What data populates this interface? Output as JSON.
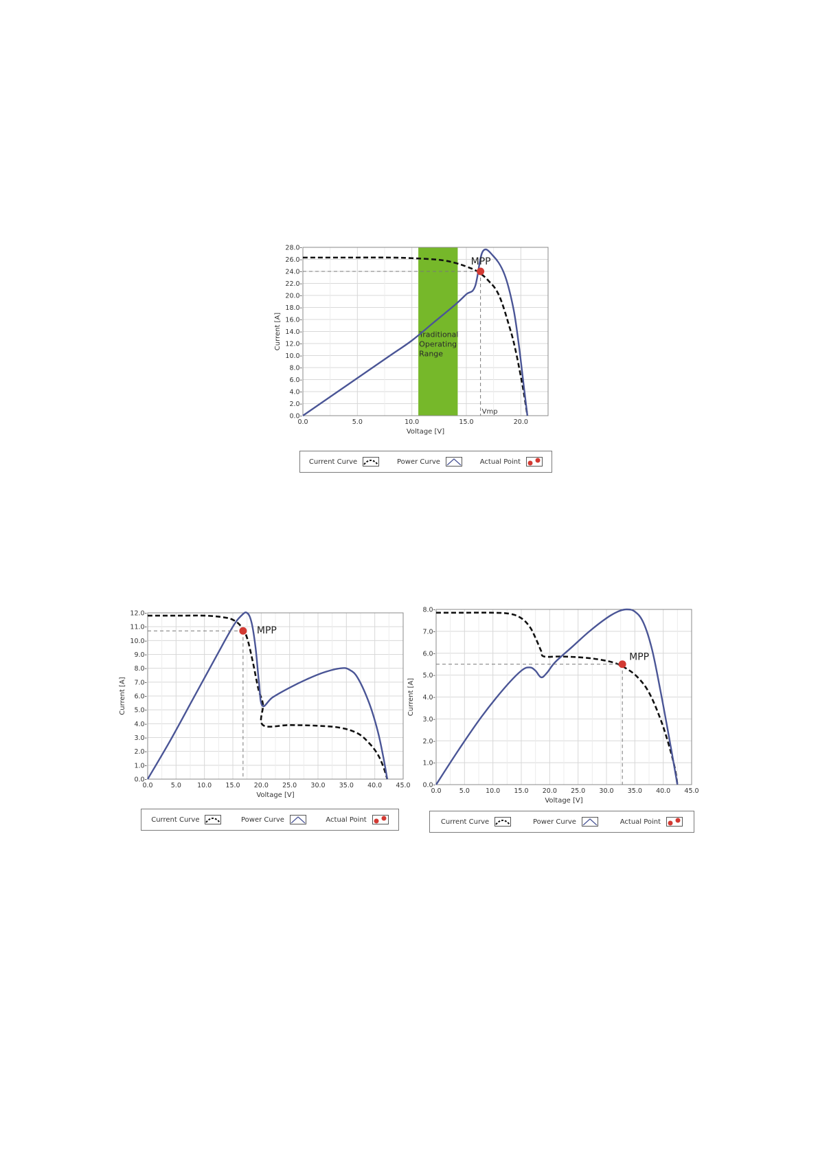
{
  "legend": {
    "current_curve": "Current Curve",
    "power_curve": "Power Curve",
    "actual_point": "Actual Point"
  },
  "colors": {
    "power_curve": "#4a5596",
    "current_curve": "#111111",
    "actual_point": "#d23a33",
    "operating_range": "#76b82a",
    "grid": "#d8d8d8"
  },
  "chart_data": [
    {
      "type": "line",
      "id": "top",
      "xlabel": "Voltage [V]",
      "ylabel": "Current [A]",
      "xlim": [
        0,
        22.5
      ],
      "ylim": [
        0,
        28
      ],
      "xticks": [
        0,
        5,
        10,
        15,
        20
      ],
      "xtick_labels": [
        "0.0",
        "5.0",
        "10.0",
        "15.0",
        "20.0"
      ],
      "yticks": [
        0,
        2,
        4,
        6,
        8,
        10,
        12,
        14,
        16,
        18,
        20,
        22,
        24,
        26,
        28
      ],
      "ytick_labels": [
        "0.0-",
        "2.0-",
        "4.0-",
        "6.0-",
        "8.0-",
        "10.0-",
        "12.0-",
        "14.0-",
        "16.0-",
        "18.0-",
        "20.0-",
        "22.0-",
        "24.0-",
        "26.0-",
        "28.0-"
      ],
      "grid": true,
      "series": [
        {
          "name": "Current Curve",
          "style": "dashed",
          "x": [
            0,
            4,
            8,
            10,
            12,
            13,
            14,
            15,
            16,
            17,
            18,
            19,
            19.5,
            20,
            20.3,
            20.6
          ],
          "y": [
            26.3,
            26.3,
            26.3,
            26.2,
            26.0,
            25.8,
            25.4,
            24.8,
            24.0,
            22.5,
            20.0,
            14.5,
            11.0,
            6.5,
            3.5,
            0.0
          ]
        },
        {
          "name": "Power Curve",
          "style": "solid",
          "x": [
            0,
            4,
            8,
            10,
            12,
            14,
            15,
            15.8,
            16.5,
            17.5,
            18.5,
            19.3,
            19.8,
            20.2,
            20.6
          ],
          "y": [
            0,
            5.0,
            10.0,
            12.5,
            15.5,
            18.5,
            20.2,
            21.5,
            27.3,
            26.5,
            23.5,
            18.0,
            12.0,
            6.0,
            0.0
          ]
        }
      ],
      "actual_point": {
        "x": 16.3,
        "y": 24.0
      },
      "mpp_label": "MPP",
      "vmp_label": "Vmp",
      "range_band": {
        "x0": 10.6,
        "x1": 14.2,
        "label_lines": [
          "Traditional",
          "Operating",
          "Range"
        ]
      }
    },
    {
      "type": "line",
      "id": "bottom-left",
      "xlabel": "Voltage [V]",
      "ylabel": "Current [A]",
      "xlim": [
        0,
        45
      ],
      "ylim": [
        0,
        12
      ],
      "xticks": [
        0,
        5,
        10,
        15,
        20,
        25,
        30,
        35,
        40,
        45
      ],
      "xtick_labels": [
        "0.0",
        "5.0",
        "10.0",
        "15.0",
        "20.0",
        "25.0",
        "30.0",
        "35.0",
        "40.0",
        "45.0"
      ],
      "yticks": [
        0,
        1,
        2,
        3,
        4,
        5,
        6,
        7,
        8,
        9,
        10,
        11,
        12
      ],
      "ytick_labels": [
        "0.0-",
        "1.0-",
        "2.0-",
        "3.0-",
        "4.0-",
        "5.0-",
        "6.0-",
        "7.0-",
        "8.0-",
        "9.0-",
        "10.0-",
        "11.0-",
        "12.0-"
      ],
      "grid": true,
      "series": [
        {
          "name": "Current Curve",
          "style": "dashed",
          "x": [
            0,
            6,
            10,
            13,
            15,
            16.5,
            17.5,
            18.5,
            19.5,
            20.3,
            20.3,
            25,
            30,
            34,
            37,
            39,
            40.5,
            41.5,
            42.2
          ],
          "y": [
            11.8,
            11.8,
            11.8,
            11.7,
            11.5,
            11.0,
            10.2,
            8.5,
            6.5,
            5.4,
            3.9,
            3.9,
            3.85,
            3.7,
            3.3,
            2.6,
            1.8,
            0.9,
            0.0
          ]
        },
        {
          "name": "Power Curve",
          "style": "solid",
          "x": [
            0,
            4,
            8,
            12,
            15,
            16.5,
            17.5,
            18.3,
            19.0,
            19.6,
            20.2,
            22,
            25,
            28,
            31,
            34,
            35.5,
            37,
            39,
            40.5,
            41.5,
            42.2
          ],
          "y": [
            0,
            2.8,
            5.8,
            8.8,
            11.0,
            11.8,
            12.0,
            11.3,
            9.5,
            7.0,
            5.3,
            5.9,
            6.6,
            7.2,
            7.7,
            8.0,
            7.9,
            7.3,
            5.5,
            3.5,
            1.6,
            0.0
          ]
        }
      ],
      "actual_point": {
        "x": 16.8,
        "y": 10.7
      },
      "mpp_label": "MPP"
    },
    {
      "type": "line",
      "id": "bottom-right",
      "xlabel": "Voltage [V]",
      "ylabel": "Current [A]",
      "xlim": [
        0,
        45
      ],
      "ylim": [
        0,
        8
      ],
      "xticks": [
        0,
        5,
        10,
        15,
        20,
        25,
        30,
        35,
        40,
        45
      ],
      "xtick_labels": [
        "0.0",
        "5.0",
        "10.0",
        "15.0",
        "20.0",
        "25.0",
        "30.0",
        "35.0",
        "40.0",
        "45.0"
      ],
      "yticks": [
        0,
        1,
        2,
        3,
        4,
        5,
        6,
        7,
        8
      ],
      "ytick_labels": [
        "0.0-",
        "1.0-",
        "2.0-",
        "3.0-",
        "4.0-",
        "5.0-",
        "6.0-",
        "7.0-",
        "8.0-"
      ],
      "grid": true,
      "series": [
        {
          "name": "Current Curve",
          "style": "dashed",
          "x": [
            0,
            5,
            10,
            13,
            15,
            16.5,
            17.5,
            18.5,
            19.0,
            22,
            26,
            29,
            31.5,
            33.5,
            35.5,
            37.5,
            39.5,
            41,
            42,
            42.5
          ],
          "y": [
            7.85,
            7.85,
            7.85,
            7.8,
            7.6,
            7.2,
            6.7,
            6.1,
            5.85,
            5.85,
            5.8,
            5.7,
            5.55,
            5.3,
            4.9,
            4.2,
            3.0,
            1.8,
            0.8,
            0.0
          ]
        },
        {
          "name": "Power Curve",
          "style": "solid",
          "x": [
            0,
            4,
            8,
            12,
            15,
            16.5,
            17.5,
            18.5,
            19.5,
            21,
            24,
            27,
            30,
            32,
            33.5,
            35,
            36.5,
            38,
            39.5,
            41,
            42.5
          ],
          "y": [
            0,
            1.6,
            3.1,
            4.4,
            5.2,
            5.35,
            5.2,
            4.9,
            5.1,
            5.6,
            6.3,
            7.0,
            7.6,
            7.9,
            8.0,
            7.9,
            7.4,
            6.2,
            4.3,
            2.2,
            0.0
          ]
        }
      ],
      "actual_point": {
        "x": 32.8,
        "y": 5.5
      },
      "mpp_label": "MPP"
    }
  ]
}
